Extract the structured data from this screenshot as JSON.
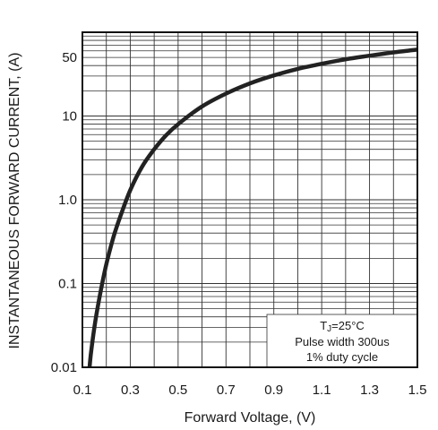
{
  "chart_data": {
    "type": "line",
    "title": "",
    "xlabel": "Forward Voltage, (V)",
    "ylabel": "INSTANTANEOUS FORWARD CURRENT, (A)",
    "x_scale": "linear",
    "y_scale": "log",
    "xlim": [
      0.1,
      1.5
    ],
    "ylim": [
      0.01,
      100
    ],
    "grid": true,
    "x_ticks": [
      0.1,
      0.3,
      0.5,
      0.7,
      0.9,
      1.1,
      1.3,
      1.5
    ],
    "x_tick_labels": [
      "0.1",
      "0.3",
      "0.5",
      "0.7",
      "0.9",
      "1.1",
      "1.3",
      "1.5"
    ],
    "y_ticks": [
      0.01,
      0.1,
      1,
      10,
      50
    ],
    "y_tick_labels": [
      "0.01",
      "0.1",
      "1.0",
      "10",
      "50"
    ],
    "annotation": {
      "line1_main": "T",
      "line1_sub": "J",
      "line1_rest": "=25°C",
      "line2": "Pulse width 300us",
      "line3": "1% duty cycle"
    },
    "series": [
      {
        "color": "#222222",
        "x": [
          0.13,
          0.135,
          0.15,
          0.17,
          0.2,
          0.23,
          0.26,
          0.3,
          0.35,
          0.4,
          0.45,
          0.5,
          0.6,
          0.7,
          0.8,
          0.9,
          1.0,
          1.1,
          1.2,
          1.3,
          1.4,
          1.5
        ],
        "y": [
          0.01,
          0.014,
          0.03,
          0.065,
          0.17,
          0.36,
          0.65,
          1.3,
          2.5,
          4.0,
          5.9,
          8.0,
          13.0,
          18.5,
          24.5,
          30.5,
          36.5,
          42.0,
          47.5,
          52.5,
          57.5,
          62.0
        ]
      }
    ]
  }
}
